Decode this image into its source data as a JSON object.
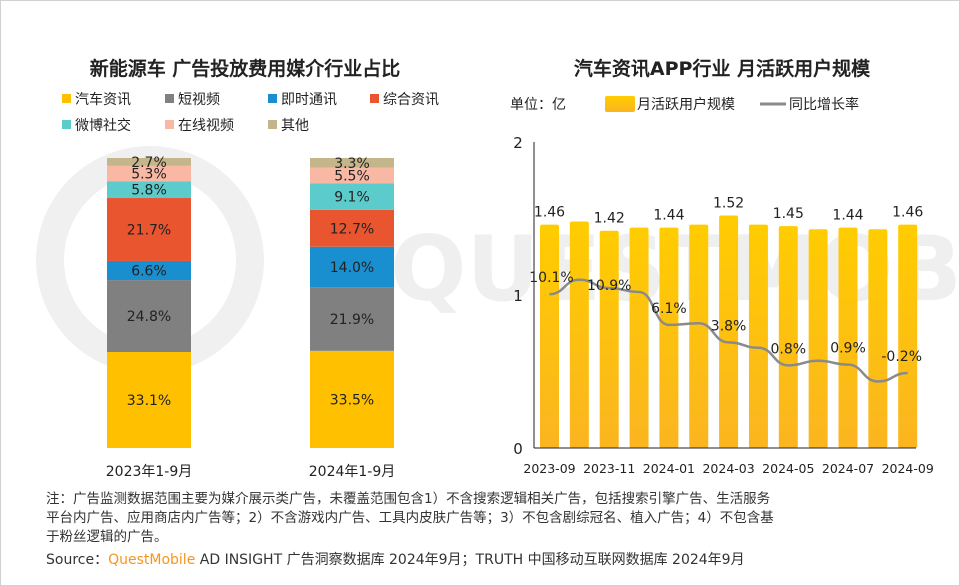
{
  "colors": {
    "auto_news": "#FFC000",
    "short_video": "#808080",
    "im": "#1A8FD0",
    "general_news": "#E9552F",
    "weibo_social": "#5CCBCB",
    "online_video": "#F9B8A4",
    "other": "#C4B68A",
    "mau_bar": "#FFC000",
    "yoy_line": "#8A8A8A",
    "brand": "#F7941D"
  },
  "chart_data": [
    {
      "type": "bar",
      "stacked": true,
      "title": "新能源车 广告投放费用媒介行业占比",
      "categories": [
        "2023年1-9月",
        "2024年1-9月"
      ],
      "legend_position": "top",
      "series": [
        {
          "name": "汽车资讯",
          "values": [
            33.1,
            33.5
          ],
          "labels": [
            "33.1%",
            "33.5%"
          ],
          "color_key": "auto_news"
        },
        {
          "name": "短视频",
          "values": [
            24.8,
            21.9
          ],
          "labels": [
            "24.8%",
            "21.9%"
          ],
          "color_key": "short_video"
        },
        {
          "name": "即时通讯",
          "values": [
            6.6,
            14.0
          ],
          "labels": [
            "6.6%",
            "14.0%"
          ],
          "color_key": "im"
        },
        {
          "name": "综合资讯",
          "values": [
            21.7,
            12.7
          ],
          "labels": [
            "21.7%",
            "12.7%"
          ],
          "color_key": "general_news"
        },
        {
          "name": "微博社交",
          "values": [
            5.8,
            9.1
          ],
          "labels": [
            "5.8%",
            "9.1%"
          ],
          "color_key": "weibo_social"
        },
        {
          "name": "在线视频",
          "values": [
            5.3,
            5.5
          ],
          "labels": [
            "5.3%",
            "5.5%"
          ],
          "color_key": "online_video"
        },
        {
          "name": "其他",
          "values": [
            2.7,
            3.3
          ],
          "labels": [
            "2.7%",
            "3.3%"
          ],
          "color_key": "other"
        }
      ],
      "ylim": [
        0,
        100
      ]
    },
    {
      "type": "bar+line",
      "title": "汽车资讯APP行业 月活跃用户规模",
      "unit_label": "单位：亿",
      "legend_position": "top",
      "x": [
        "2023-09",
        "2023-10",
        "2023-11",
        "2023-12",
        "2024-01",
        "2024-02",
        "2024-03",
        "2024-04",
        "2024-05",
        "2024-06",
        "2024-07",
        "2024-08",
        "2024-09"
      ],
      "x_tick_labels": [
        "2023-09",
        "2023-11",
        "2024-01",
        "2024-03",
        "2024-05",
        "2024-07",
        "2024-09"
      ],
      "y_ticks": [
        "0",
        "1",
        "2"
      ],
      "ylim": [
        0,
        2
      ],
      "series": [
        {
          "name": "月活跃用户规模",
          "kind": "bar",
          "values": [
            1.46,
            1.48,
            1.42,
            1.44,
            1.44,
            1.46,
            1.52,
            1.46,
            1.45,
            1.43,
            1.44,
            1.43,
            1.46
          ],
          "labels": [
            "1.46",
            "",
            "1.42",
            "",
            "1.44",
            "",
            "1.52",
            "",
            "1.45",
            "",
            "1.44",
            "",
            "1.46"
          ]
        },
        {
          "name": "同比增长率",
          "kind": "line",
          "unit": "%",
          "values": [
            10.1,
            12.0,
            10.9,
            10.4,
            6.1,
            6.3,
            3.8,
            3.1,
            0.8,
            1.4,
            0.9,
            -1.3,
            -0.2
          ],
          "labels": [
            "10.1%",
            "",
            "10.9%",
            "",
            "6.1%",
            "",
            "3.8%",
            "",
            "0.8%",
            "",
            "0.9%",
            "",
            "-0.2%"
          ],
          "y2lim": [
            -10,
            30
          ]
        }
      ]
    }
  ],
  "footer": {
    "note_line1": "注：广告监测数据范围主要为媒介展示类广告，未覆盖范围包含1）不含搜索逻辑相关广告，包括搜索引擎广告、生活服务",
    "note_line2": "平台内广告、应用商店内广告等；2）不含游戏内广告、工具内皮肤广告等；3）不包含剧综冠名、植入广告；4）不包含基",
    "note_line3": "于粉丝逻辑的广告。",
    "source_prefix": "Source：",
    "source_brand": "QuestMobile",
    "source_rest": " AD INSIGHT 广告洞察数据库 2024年9月；TRUTH 中国移动互联网数据库 2024年9月"
  }
}
